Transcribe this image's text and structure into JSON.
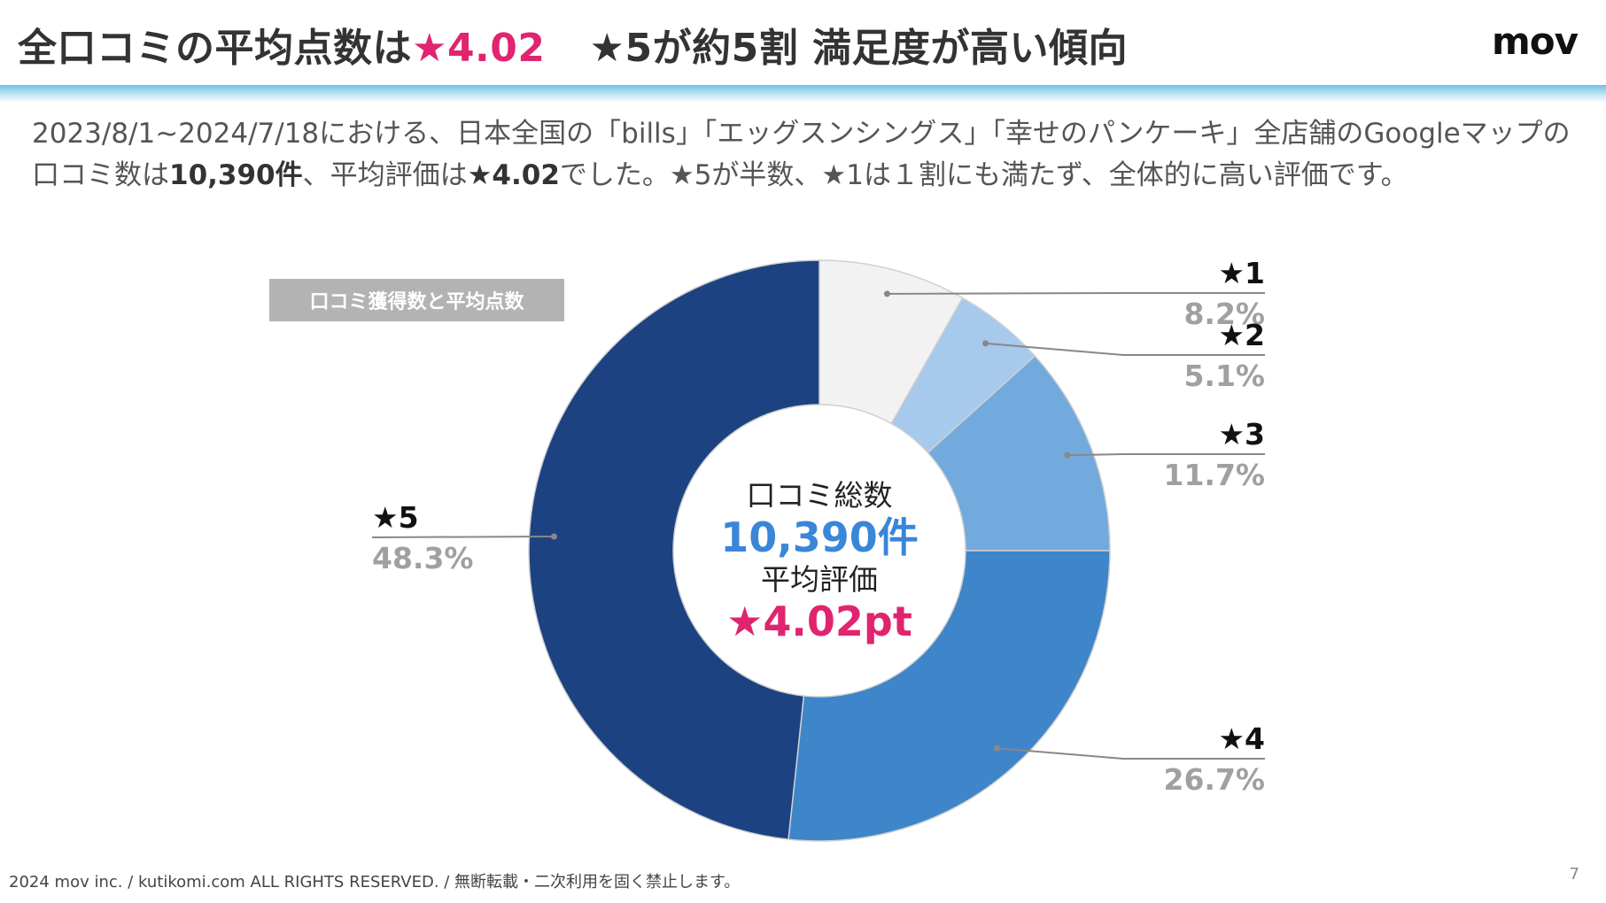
{
  "header": {
    "title_main": "全口コミの平均点数は",
    "title_highlight": "★4.02",
    "title_sub": "★5が約5割 満足度が高い傾向",
    "logo": "mov"
  },
  "description": {
    "part1": "2023/8/1~2024/7/18における、日本全国の「bills」「エッグスンシングス」「幸せのパンケーキ」全店舗のGoogleマップの口コミ数は",
    "count": "10,390件",
    "part2": "、平均評価は",
    "average": "★4.02",
    "part3": "でした。★5が半数、★1は１割にも満たず、全体的に高い評価です。"
  },
  "chip_label": "口コミ獲得数と平均点数",
  "chart_data": {
    "type": "pie",
    "title": "",
    "center": {
      "label_total": "口コミ総数",
      "total": "10,390件",
      "label_avg": "平均評価",
      "avg": "★4.02pt"
    },
    "slices": [
      {
        "name": "★1",
        "pct_label": "8.2%",
        "value": 8.2,
        "color": "#f2f2f2"
      },
      {
        "name": "★2",
        "pct_label": "5.1%",
        "value": 5.1,
        "color": "#a7c9ec"
      },
      {
        "name": "★3",
        "pct_label": "11.7%",
        "value": 11.7,
        "color": "#72aade"
      },
      {
        "name": "★4",
        "pct_label": "26.7%",
        "value": 26.7,
        "color": "#3e85c9"
      },
      {
        "name": "★5",
        "pct_label": "48.3%",
        "value": 48.3,
        "color": "#1c4282"
      }
    ]
  },
  "footer": "2024 mov inc. / kutikomi.com ALL RIGHTS RESERVED. / 無断転載・二次利用を固く禁止します。",
  "page_number": "7"
}
